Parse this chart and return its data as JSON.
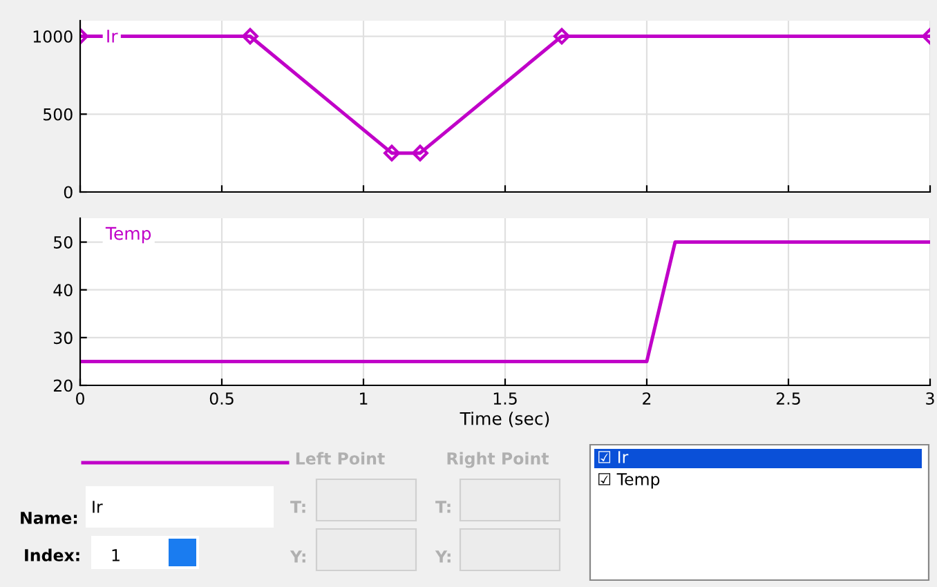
{
  "chart_data": [
    {
      "type": "line",
      "x": [
        0,
        0.6,
        1.1,
        1.2,
        1.7,
        3
      ],
      "xlim": [
        0,
        3
      ],
      "xticks": [
        0,
        0.5,
        1,
        1.5,
        2,
        2.5,
        3
      ],
      "ylim": [
        0,
        1100
      ],
      "yticks": [
        0,
        500,
        1000
      ],
      "grid": true,
      "tick_labels": "y",
      "series": [
        {
          "name": "Ir",
          "color": "#c000c8",
          "marker": "diamond",
          "values": [
            1000,
            1000,
            250,
            250,
            1000,
            1000
          ]
        }
      ]
    },
    {
      "type": "line",
      "x": [
        0,
        2,
        2.1,
        3
      ],
      "xlim": [
        0,
        3
      ],
      "xticks": [
        0,
        0.5,
        1,
        1.5,
        2,
        2.5,
        3
      ],
      "ylim": [
        20,
        55
      ],
      "yticks": [
        20,
        30,
        40,
        50
      ],
      "grid": true,
      "xlabel": "Time (sec)",
      "series": [
        {
          "name": "Temp",
          "color": "#c000c8",
          "values": [
            25,
            25,
            50,
            50
          ]
        }
      ]
    },
    {
      "type": "other",
      "annotations": [
        "Left Point",
        "Right Point",
        "Name:",
        "Ir",
        "Index:",
        "1",
        "T:",
        "Y:",
        "T:",
        "Y:",
        "☑ Ir",
        "☑ Temp"
      ]
    }
  ]
}
